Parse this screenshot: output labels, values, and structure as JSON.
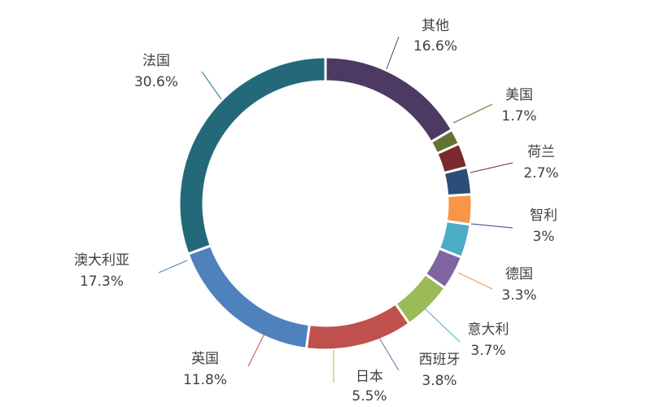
{
  "chart_data": {
    "type": "pie",
    "variant": "donut",
    "start_angle_deg": 0,
    "direction": "clockwise",
    "slices": [
      {
        "label": "其他",
        "value_text": "16.6%",
        "value": 16.6,
        "color": "#4C3A63"
      },
      {
        "label": "美国",
        "value_text": "1.7%",
        "value": 1.7,
        "color": "#627530"
      },
      {
        "label": "荷兰",
        "value_text": "2.7%",
        "value": 2.7,
        "color": "#7A2A2A"
      },
      {
        "label": "智利",
        "value_text": "3%",
        "value": 3.0,
        "color": "#2C4D78"
      },
      {
        "label": "德国",
        "value_text": "3.3%",
        "value": 3.3,
        "color": "#F79646"
      },
      {
        "label": "意大利",
        "value_text": "3.7%",
        "value": 3.7,
        "color": "#4BACC6"
      },
      {
        "label": "西班牙",
        "value_text": "3.8%",
        "value": 3.8,
        "color": "#8064A2"
      },
      {
        "label": "日本",
        "value_text": "5.5%",
        "value": 5.5,
        "color": "#9BBB59"
      },
      {
        "label": "英国",
        "value_text": "11.8%",
        "value": 11.8,
        "color": "#C0504D"
      },
      {
        "label": "澳大利亚",
        "value_text": "17.3%",
        "value": 17.3,
        "color": "#4F81BD"
      },
      {
        "label": "法国",
        "value_text": "30.6%",
        "value": 30.6,
        "color": "#23697A"
      }
    ]
  }
}
